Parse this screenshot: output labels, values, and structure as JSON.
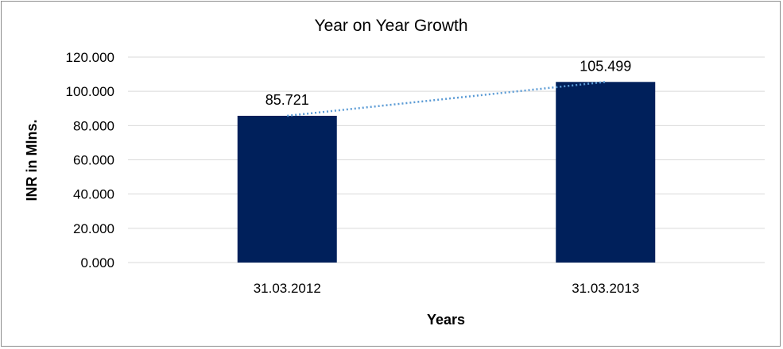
{
  "chart_data": {
    "type": "bar",
    "title": "Year on Year Growth",
    "xlabel": "Years",
    "ylabel": "INR in Mlns.",
    "categories": [
      "31.03.2012",
      "31.03.2013"
    ],
    "values": [
      85.721,
      105.499
    ],
    "data_labels": [
      "85.721",
      "105.499"
    ],
    "ylim": [
      0,
      120
    ],
    "yticks": [
      0,
      20,
      40,
      60,
      80,
      100,
      120
    ],
    "ytick_labels": [
      "0.000",
      "20.000",
      "40.000",
      "60.000",
      "80.000",
      "100.000",
      "120.000"
    ],
    "grid": true,
    "trendline": {
      "type": "linear",
      "style": "dotted"
    },
    "colors": {
      "bar": "#00205b",
      "grid": "#d9d9d9",
      "trendline": "#5b9bd5",
      "border": "#8c8c8c"
    }
  }
}
